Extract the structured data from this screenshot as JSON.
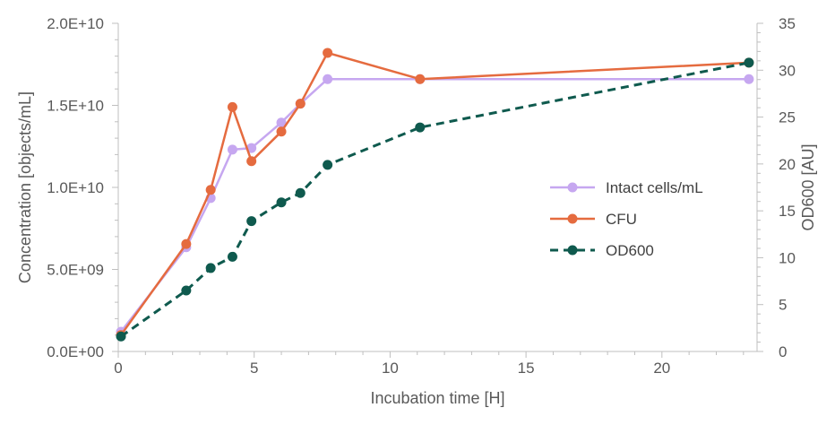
{
  "chart_data": {
    "type": "line",
    "title": "",
    "xlabel": "Incubation time [H]",
    "ylabel": "Concentration [objects/mL]",
    "y2label": "OD600 [AU]",
    "xlim": [
      0,
      23.5
    ],
    "ylim": [
      0,
      20000000000
    ],
    "y2lim": [
      0,
      35
    ],
    "x_ticks": [
      0,
      5,
      10,
      15,
      20
    ],
    "x_tick_labels": [
      "0",
      "5",
      "10",
      "15",
      "20"
    ],
    "y_ticks": [
      0,
      5000000000,
      10000000000,
      15000000000,
      20000000000
    ],
    "y_tick_labels": [
      "0.0E+00",
      "5.0E+09",
      "1.0E+10",
      "1.5E+10",
      "2.0E+10"
    ],
    "y2_ticks": [
      0,
      5,
      10,
      15,
      20,
      25,
      30,
      35
    ],
    "y2_tick_labels": [
      "0",
      "5",
      "10",
      "15",
      "20",
      "25",
      "30",
      "35"
    ],
    "grid": false,
    "legend_position": "right-center",
    "series": [
      {
        "name": "Intact cells/mL",
        "axis": "left",
        "color": "#c6a7f0",
        "dash": "solid",
        "x": [
          0.1,
          2.5,
          3.4,
          4.2,
          4.9,
          6.0,
          6.7,
          7.7,
          11.1,
          23.2
        ],
        "values": [
          1200000000,
          6350000000,
          9350000000,
          12300000000,
          12400000000,
          13950000000,
          15100000000,
          16600000000,
          16600000000,
          16600000000
        ]
      },
      {
        "name": "CFU",
        "axis": "left",
        "color": "#e56b3f",
        "dash": "solid",
        "x": [
          0.1,
          2.5,
          3.4,
          4.2,
          4.9,
          6.0,
          6.7,
          7.7,
          11.1,
          23.2
        ],
        "values": [
          1000000000,
          6550000000,
          9850000000,
          14900000000,
          11600000000,
          13400000000,
          15100000000,
          18200000000,
          16600000000,
          17600000000
        ]
      },
      {
        "name": "OD600",
        "axis": "right",
        "color": "#0f5a4e",
        "dash": "dashed",
        "x": [
          0.1,
          2.5,
          3.4,
          4.2,
          4.9,
          6.0,
          6.7,
          7.7,
          11.1,
          23.2
        ],
        "values": [
          1.6,
          6.5,
          8.9,
          10.1,
          13.9,
          15.9,
          16.9,
          19.9,
          23.9,
          30.8
        ]
      }
    ]
  }
}
